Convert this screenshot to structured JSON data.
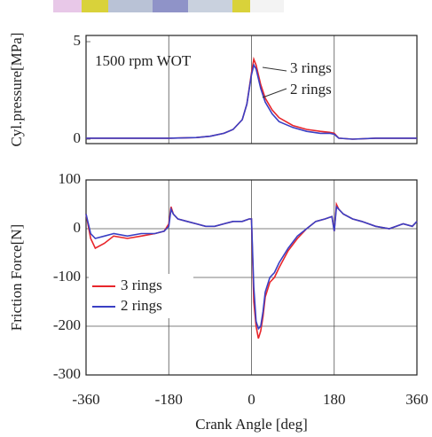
{
  "chart_data": [
    {
      "type": "line",
      "ylabel": "Cyl.pressure[MPa]",
      "annotation": "1500 rpm WOT",
      "x": [
        -360,
        -270,
        -180,
        -120,
        -90,
        -60,
        -40,
        -20,
        -10,
        0,
        5,
        10,
        15,
        20,
        30,
        45,
        60,
        90,
        120,
        150,
        170,
        180,
        190,
        220,
        270,
        360
      ],
      "series": [
        {
          "name": "3 rings",
          "color": "#e8262b",
          "values": [
            0.05,
            0.05,
            0.05,
            0.08,
            0.15,
            0.3,
            0.5,
            1.0,
            1.8,
            3.4,
            4.1,
            3.8,
            3.3,
            2.8,
            2.1,
            1.5,
            1.1,
            0.7,
            0.5,
            0.4,
            0.35,
            0.3,
            0.05,
            0.0,
            0.05,
            0.05
          ]
        },
        {
          "name": "2 rings",
          "color": "#3a3fc4",
          "values": [
            0.05,
            0.05,
            0.05,
            0.08,
            0.15,
            0.3,
            0.5,
            1.0,
            1.8,
            3.3,
            3.8,
            3.6,
            3.1,
            2.6,
            1.9,
            1.3,
            0.9,
            0.6,
            0.4,
            0.3,
            0.3,
            0.25,
            0.05,
            0.0,
            0.05,
            0.05
          ]
        }
      ],
      "xlim": [
        -360,
        360
      ],
      "xticks": [
        -180,
        0,
        180
      ],
      "ylim": [
        0,
        5
      ],
      "yticks": [
        0,
        5
      ],
      "grid": "x"
    },
    {
      "type": "line",
      "ylabel": "Friction Force[N]",
      "xlabel": "Crank Angle [deg]",
      "x": [
        -360,
        -350,
        -340,
        -320,
        -300,
        -270,
        -240,
        -210,
        -190,
        -180,
        -175,
        -170,
        -160,
        -140,
        -120,
        -100,
        -80,
        -60,
        -40,
        -20,
        -5,
        0,
        5,
        10,
        15,
        20,
        25,
        30,
        40,
        50,
        60,
        80,
        100,
        120,
        140,
        160,
        175,
        180,
        185,
        190,
        200,
        220,
        240,
        270,
        300,
        330,
        350,
        360
      ],
      "series": [
        {
          "name": "3 rings",
          "color": "#e8262b",
          "values": [
            30,
            -20,
            -40,
            -30,
            -15,
            -20,
            -15,
            -10,
            -5,
            10,
            45,
            30,
            20,
            15,
            10,
            5,
            5,
            10,
            15,
            15,
            20,
            20,
            -150,
            -200,
            -225,
            -210,
            -180,
            -140,
            -110,
            -100,
            -80,
            -45,
            -20,
            0,
            15,
            20,
            25,
            -5,
            50,
            40,
            30,
            20,
            15,
            5,
            0,
            10,
            5,
            15
          ]
        },
        {
          "name": "2 rings",
          "color": "#3a3fc4",
          "values": [
            30,
            -10,
            -20,
            -15,
            -10,
            -15,
            -10,
            -10,
            -5,
            5,
            40,
            30,
            20,
            15,
            10,
            5,
            5,
            10,
            15,
            15,
            20,
            20,
            -120,
            -190,
            -205,
            -200,
            -170,
            -130,
            -100,
            -90,
            -70,
            -40,
            -15,
            0,
            15,
            20,
            25,
            -5,
            45,
            40,
            30,
            20,
            15,
            5,
            0,
            10,
            5,
            15
          ]
        }
      ],
      "xlim": [
        -360,
        360
      ],
      "xticks": [
        -360,
        -180,
        0,
        180,
        360
      ],
      "ylim": [
        -300,
        100
      ],
      "yticks": [
        -300,
        -200,
        -100,
        0,
        100
      ],
      "grid": "both",
      "legend": "lower left"
    }
  ]
}
